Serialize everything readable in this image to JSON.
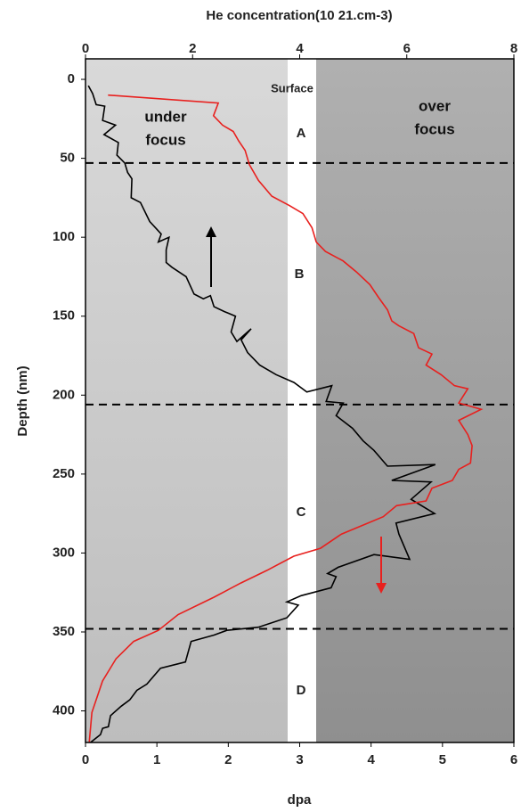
{
  "chart_data": {
    "type": "line",
    "title": "He concentration(10 21.cm-3)",
    "xlabel": "dpa",
    "ylabel": "Depth (nm)",
    "xlim": [
      0,
      6
    ],
    "xticks": [
      0,
      1,
      2,
      3,
      4,
      5,
      6
    ],
    "x2lim": [
      0,
      8
    ],
    "x2ticks": [
      0,
      2,
      4,
      6,
      8
    ],
    "ylim": [
      -13,
      420
    ],
    "yticks": [
      0,
      50,
      100,
      150,
      200,
      250,
      300,
      350,
      400
    ],
    "y_inverted": true,
    "hlines": [
      53,
      206,
      348
    ],
    "annotations": [
      "Surface",
      "A",
      "B",
      "C",
      "D",
      "under",
      "focus",
      "over",
      "focus"
    ],
    "series": [
      {
        "color": "#000000",
        "axis": "x",
        "values": [
          0.04,
          0.1,
          0.15,
          0.27,
          0.24,
          0.42,
          0.26,
          0.46,
          0.44,
          0.55,
          0.59,
          0.65,
          0.64,
          0.77,
          0.9,
          1.0,
          1.06,
          1.02,
          1.17,
          1.13,
          1.13,
          1.21,
          1.41,
          1.52,
          1.65,
          1.75,
          1.8,
          1.94,
          2.1,
          2.04,
          2.12,
          2.32,
          2.18,
          2.27,
          2.44,
          2.67,
          2.92,
          3.1,
          3.45,
          3.37,
          3.61,
          3.51,
          3.74,
          3.89,
          4.04,
          4.23,
          4.9,
          4.29,
          4.84,
          4.56,
          4.89,
          4.35,
          4.39,
          4.54,
          4.04,
          3.54,
          3.39,
          3.51,
          3.44,
          3.02,
          2.82,
          2.98,
          2.82,
          2.42,
          1.98,
          1.8,
          1.48,
          1.4,
          1.05,
          0.86,
          0.72,
          0.62,
          0.5,
          0.35,
          0.32,
          0.24,
          0.21,
          0.07
        ],
        "y": [
          4,
          9,
          16,
          17,
          26,
          29,
          35,
          40,
          48,
          53,
          59,
          63,
          75,
          78,
          90,
          95,
          98,
          103,
          100,
          108,
          116,
          119,
          125,
          136,
          139,
          137,
          144,
          147,
          150,
          160,
          166,
          158,
          165,
          173,
          181,
          187,
          192,
          198,
          194,
          204,
          205,
          213,
          221,
          229,
          235,
          245,
          244,
          254,
          255,
          266,
          275,
          281,
          288,
          304,
          301,
          309,
          313,
          315,
          322,
          327,
          331,
          333,
          341,
          347,
          349,
          352,
          356,
          369,
          373,
          383,
          387,
          393,
          397,
          403,
          410,
          411,
          415,
          420
        ]
      },
      {
        "color": "#e8201e",
        "axis": "x2",
        "values": [
          0.42,
          2.48,
          2.39,
          2.56,
          2.76,
          2.86,
          2.98,
          3.06,
          3.23,
          3.48,
          3.81,
          4.06,
          4.23,
          4.31,
          4.48,
          4.81,
          5.06,
          5.31,
          5.47,
          5.64,
          5.72,
          5.85,
          6.13,
          6.22,
          6.47,
          6.36,
          6.64,
          6.89,
          7.14,
          6.97,
          7.39,
          6.97,
          7.14,
          7.22,
          7.19,
          6.97,
          6.85,
          6.47,
          6.36,
          5.81,
          5.56,
          5.14,
          4.78,
          4.39,
          3.89,
          3.39,
          2.9,
          2.4,
          1.73,
          1.36,
          0.9,
          0.57,
          0.32,
          0.12,
          0.07
        ],
        "y": [
          10,
          15,
          23,
          29,
          33,
          39,
          45,
          54,
          64,
          74,
          80,
          85,
          94,
          103,
          109,
          115,
          122,
          130,
          138,
          146,
          153,
          156,
          161,
          170,
          174,
          181,
          187,
          194,
          196,
          205,
          209,
          216,
          225,
          232,
          243,
          247,
          254,
          259,
          267,
          270,
          277,
          283,
          288,
          297,
          302,
          311,
          319,
          328,
          339,
          349,
          356,
          367,
          381,
          401,
          420
        ]
      }
    ]
  }
}
